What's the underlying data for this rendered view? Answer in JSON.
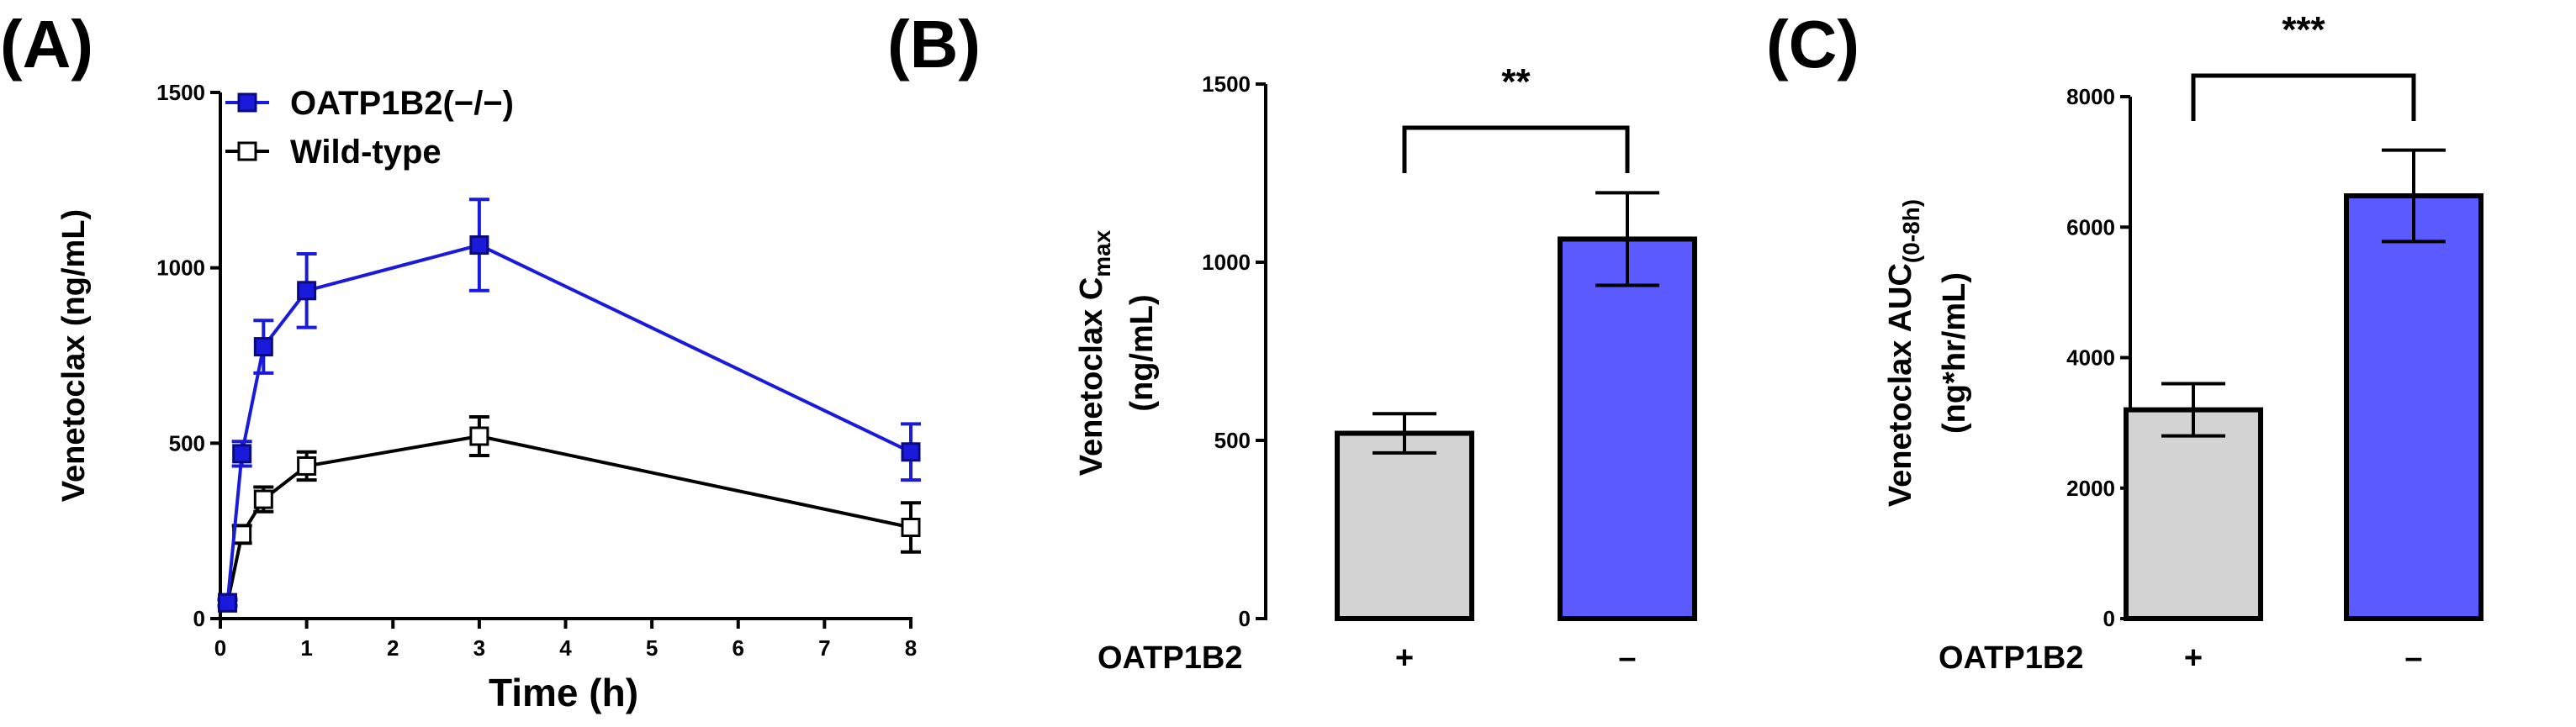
{
  "chart_data": [
    {
      "panel": "(A)",
      "type": "line",
      "xlabel": "Time (h)",
      "ylabel": "Venetoclax (ng/mL)",
      "xlim": [
        0,
        8
      ],
      "ylim": [
        0,
        1500
      ],
      "xticks": [
        0,
        1,
        2,
        3,
        4,
        5,
        6,
        7,
        8
      ],
      "yticks": [
        0,
        500,
        1000,
        1500
      ],
      "legend_position": "top-left",
      "series": [
        {
          "name": "OATP1B2(−/−)",
          "color": "#1a1adc",
          "marker": "filled-square",
          "points": [
            {
              "x": 0.083,
              "y": 45,
              "err": 10
            },
            {
              "x": 0.25,
              "y": 470,
              "err": 35
            },
            {
              "x": 0.5,
              "y": 775,
              "err": 75
            },
            {
              "x": 1,
              "y": 935,
              "err": 105
            },
            {
              "x": 3,
              "y": 1065,
              "err": 130
            },
            {
              "x": 8,
              "y": 475,
              "err": 80
            }
          ]
        },
        {
          "name": "Wild-type",
          "color": "#000000",
          "marker": "open-square",
          "points": [
            {
              "x": 0.083,
              "y": 45,
              "err": 8
            },
            {
              "x": 0.25,
              "y": 240,
              "err": 25
            },
            {
              "x": 0.5,
              "y": 340,
              "err": 35
            },
            {
              "x": 1,
              "y": 435,
              "err": 40
            },
            {
              "x": 3,
              "y": 520,
              "err": 55
            },
            {
              "x": 8,
              "y": 260,
              "err": 70
            }
          ]
        }
      ]
    },
    {
      "panel": "(B)",
      "type": "bar",
      "ylabel_main": "Venetoclax C",
      "ylabel_sub": "max",
      "ylabel_unit": "(ng/mL)",
      "ylim": [
        0,
        1500
      ],
      "yticks": [
        0,
        500,
        1000,
        1500
      ],
      "group_label": "OATP1B2",
      "categories": [
        "+",
        "–"
      ],
      "values": [
        520,
        1065
      ],
      "errors": [
        55,
        130
      ],
      "colors": [
        "#d3d3d3",
        "#5a5aff"
      ],
      "significance": "**"
    },
    {
      "panel": "(C)",
      "type": "bar",
      "ylabel_main": "Venetoclax AUC",
      "ylabel_sub": "(0-8h)",
      "ylabel_unit": "(ng*hr/mL)",
      "ylim": [
        0,
        8000
      ],
      "yticks": [
        0,
        2000,
        4000,
        6000,
        8000
      ],
      "group_label": "OATP1B2",
      "categories": [
        "+",
        "–"
      ],
      "values": [
        3200,
        6480
      ],
      "errors": [
        400,
        700
      ],
      "colors": [
        "#d3d3d3",
        "#5a5aff"
      ],
      "significance": "***"
    }
  ]
}
